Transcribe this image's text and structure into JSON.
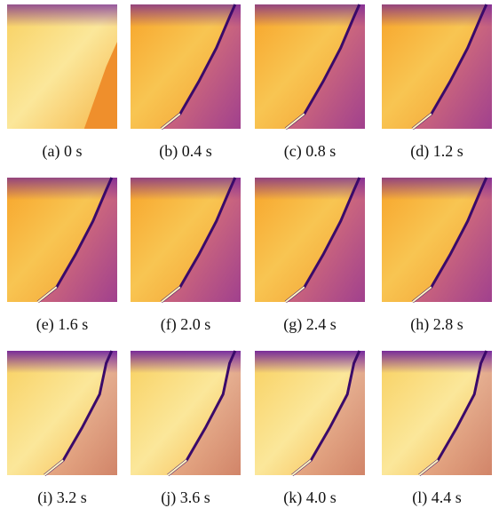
{
  "figure": {
    "captions": [
      "(a) 0 s",
      "(b) 0.4 s",
      "(c) 0.8 s",
      "(d) 1.2 s",
      "(e) 1.6 s",
      "(f) 2.0 s",
      "(g) 2.4 s",
      "(h) 2.8 s",
      "(i) 3.2 s",
      "(j) 3.6 s",
      "(k) 4.0 s",
      "(l) 4.4 s"
    ]
  }
}
